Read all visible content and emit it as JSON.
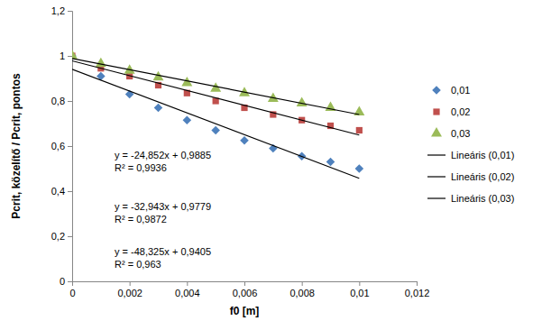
{
  "chart_data": {
    "type": "scatter",
    "x_label": "f0 [m]",
    "y_label": "Pcrit, közelítő / Pcrit, pontos",
    "x": [
      0,
      0.001,
      0.002,
      0.003,
      0.004,
      0.005,
      0.006,
      0.007,
      0.008,
      0.009,
      0.01
    ],
    "series": [
      {
        "name": "0,01",
        "color": "#4f81bd",
        "marker": "diamond",
        "values": [
          1,
          0.91,
          0.83,
          0.77,
          0.715,
          0.67,
          0.625,
          0.59,
          0.555,
          0.53,
          0.5
        ]
      },
      {
        "name": "0,02",
        "color": "#c0504d",
        "marker": "square",
        "values": [
          1,
          0.945,
          0.91,
          0.87,
          0.835,
          0.8,
          0.77,
          0.74,
          0.715,
          0.69,
          0.67
        ]
      },
      {
        "name": "0,03",
        "color": "#9bbb59",
        "marker": "triangle",
        "values": [
          1,
          0.965,
          0.935,
          0.905,
          0.88,
          0.855,
          0.835,
          0.81,
          0.79,
          0.77,
          0.75
        ]
      },
      {
        "name": "Lineáris (0,01)",
        "type": "line",
        "color": "#000000",
        "line_style": "solid",
        "x": [
          0,
          0.01
        ],
        "values": [
          0.9405,
          0.457
        ]
      },
      {
        "name": "Lineáris (0,02)",
        "type": "line",
        "color": "#000000",
        "line_style": "solid",
        "x": [
          0,
          0.01
        ],
        "values": [
          0.978,
          0.649
        ]
      },
      {
        "name": "Lineáris (0,03)",
        "type": "line",
        "color": "#000000",
        "line_style": "solid",
        "x": [
          0,
          0.01
        ],
        "values": [
          0.9885,
          0.74
        ]
      }
    ],
    "annotations": [
      "y = -24,852x + 0,9885",
      "R² = 0,9936",
      "y = -32,943x + 0,9779",
      "R² = 0,9872",
      "y = -48,325x + 0,9405",
      "R² = 0,963"
    ],
    "xlim": [
      0,
      0.012
    ],
    "xticks": [
      0,
      {
        "value": 0.002,
        "label": "0,002"
      },
      {
        "value": 0.004,
        "label": "0,004"
      },
      {
        "value": 0.006,
        "label": "0,006"
      },
      {
        "value": 0.008,
        "label": "0,008"
      },
      {
        "value": 0.01,
        "label": "0,01"
      },
      {
        "value": 0.012,
        "label": "0,012"
      }
    ],
    "ylim": [
      0,
      1.2
    ],
    "yticks": [
      0,
      {
        "value": 0.2,
        "label": "0,2"
      },
      {
        "value": 0.4,
        "label": "0,4"
      },
      {
        "value": 0.6,
        "label": "0,6"
      },
      {
        "value": 0.8,
        "label": "0,8"
      },
      1,
      {
        "value": 1.2,
        "label": "1,2"
      }
    ],
    "grid": false,
    "legend": "right"
  }
}
